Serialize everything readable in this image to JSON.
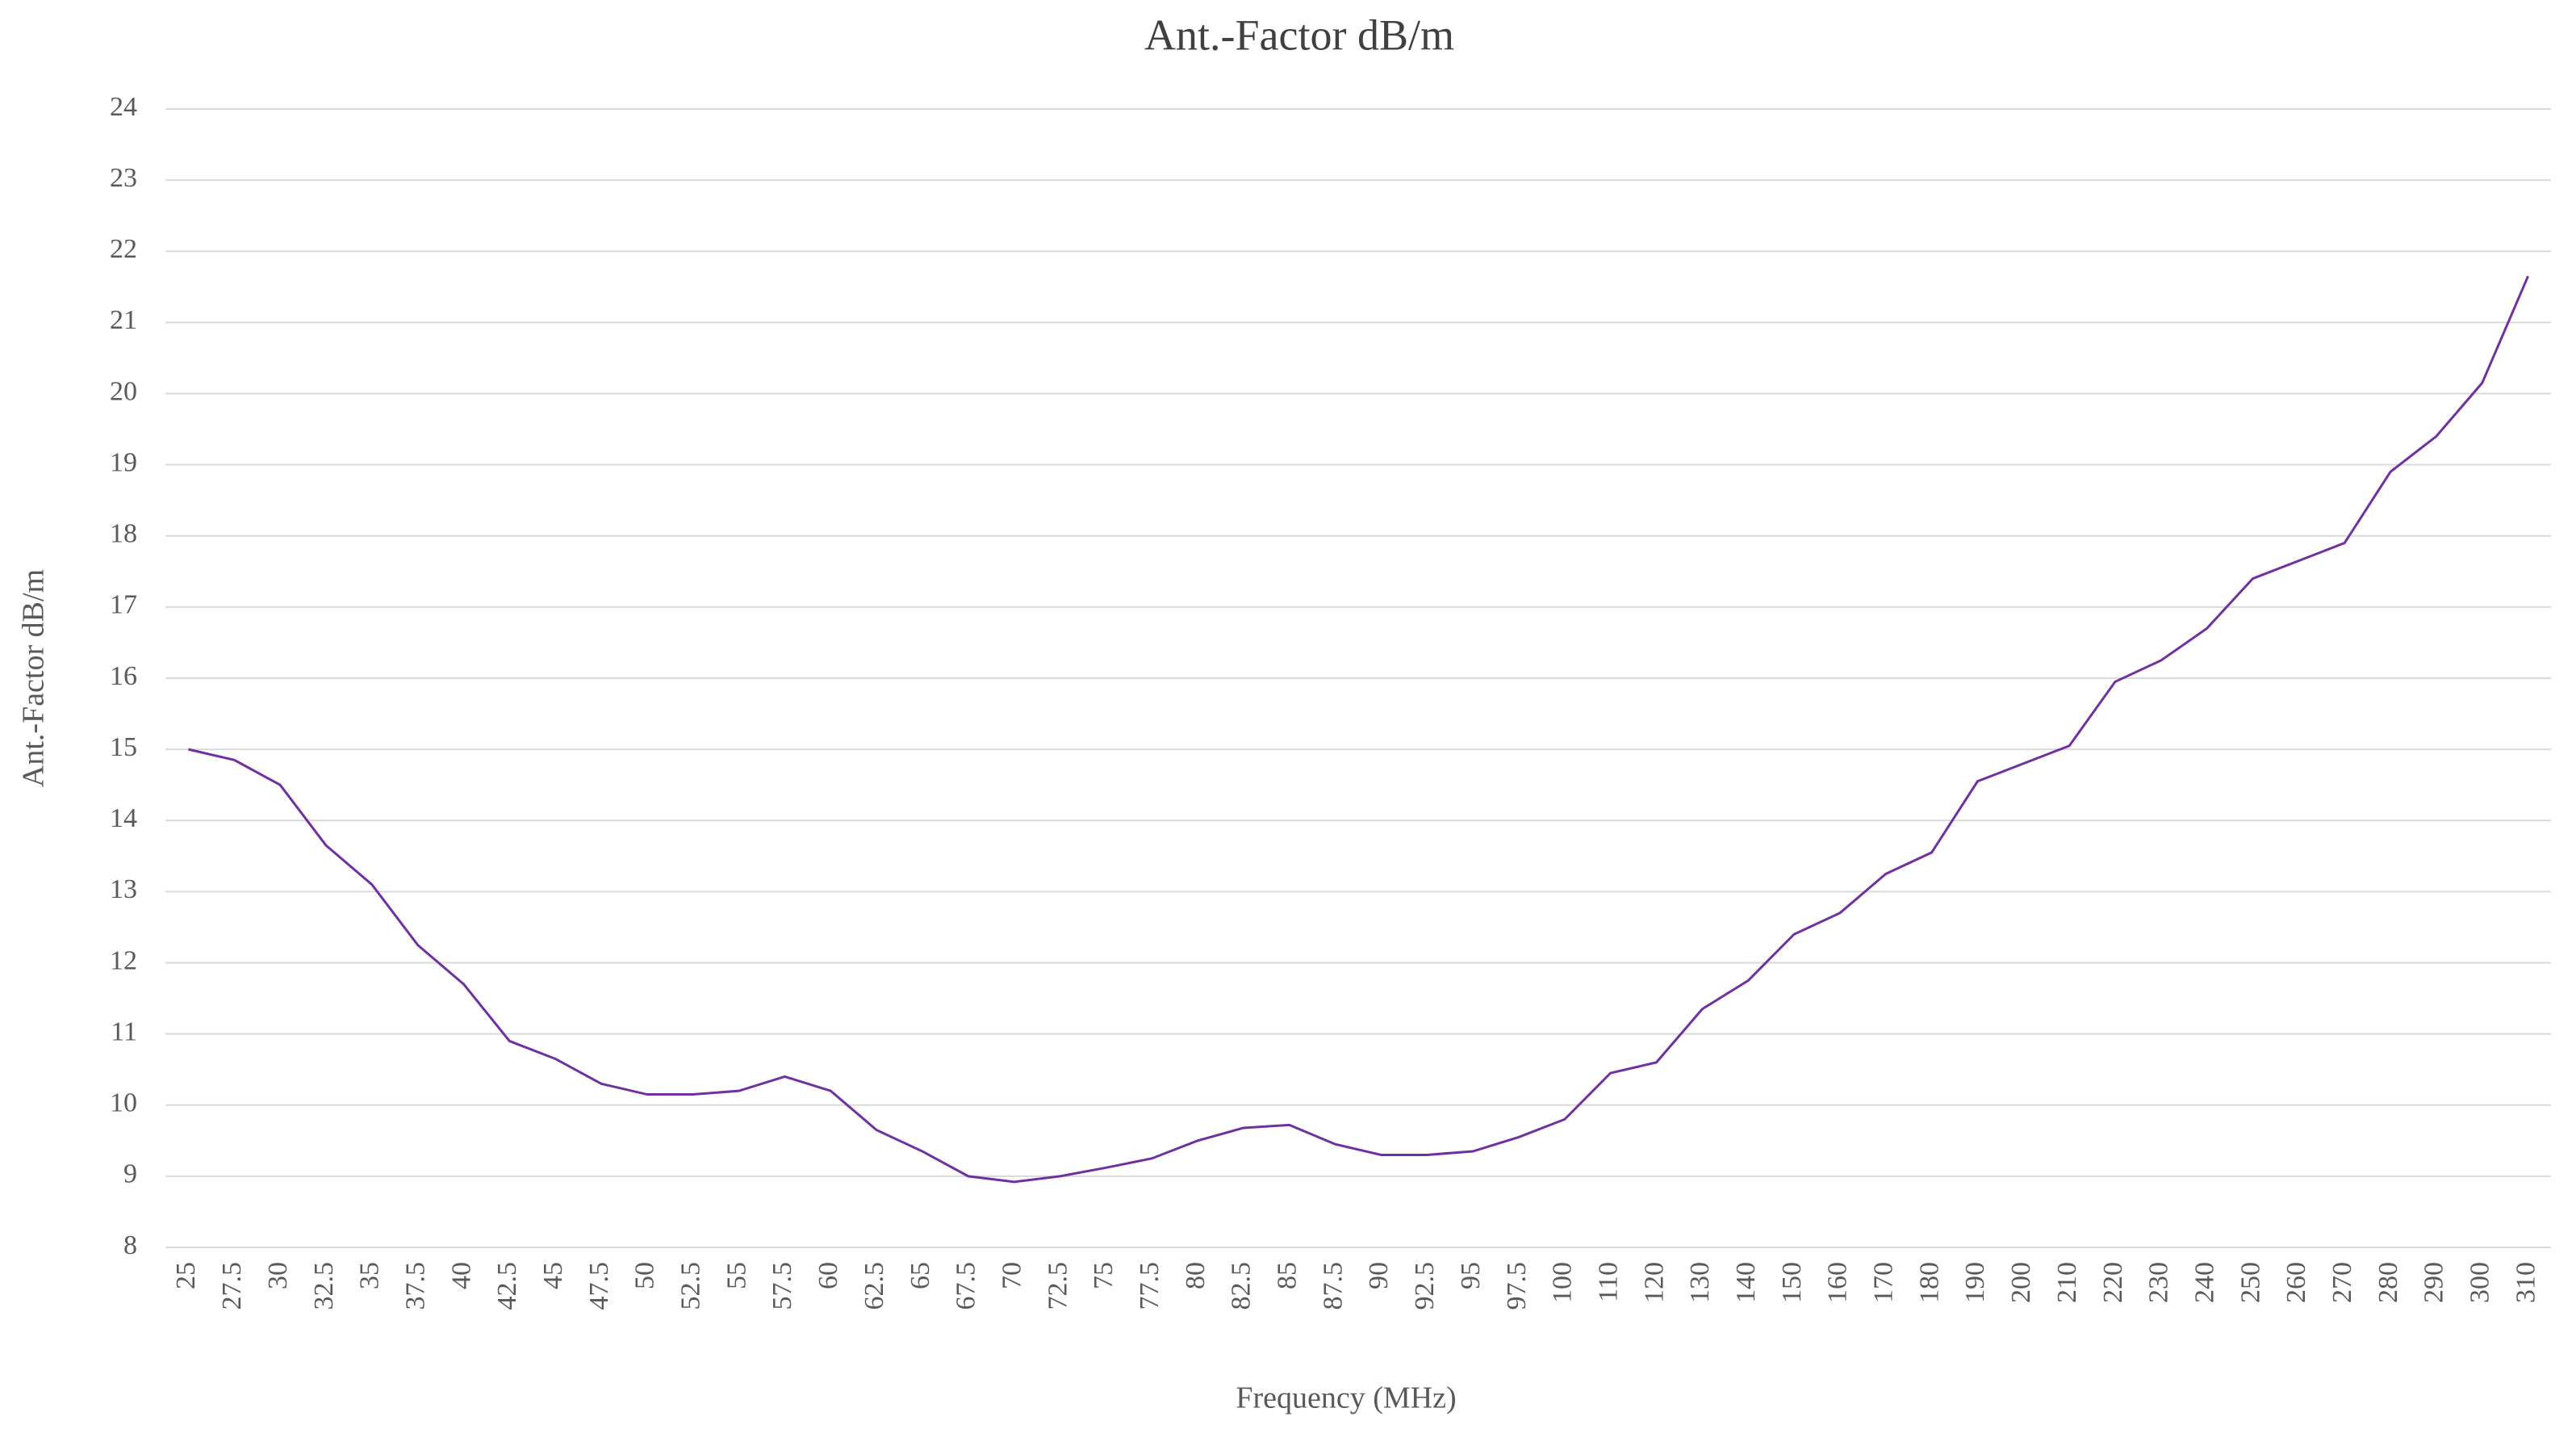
{
  "chart_data": {
    "type": "line",
    "title": "Ant.-Factor dB/m",
    "x_label": "Frequency (MHz)",
    "y_label": "Ant.-Factor dB/m",
    "categories": [
      "25",
      "27.5",
      "30",
      "32.5",
      "35",
      "37.5",
      "40",
      "42.5",
      "45",
      "47.5",
      "50",
      "52.5",
      "55",
      "57.5",
      "60",
      "62.5",
      "65",
      "67.5",
      "70",
      "72.5",
      "75",
      "77.5",
      "80",
      "82.5",
      "85",
      "87.5",
      "90",
      "92.5",
      "95",
      "97.5",
      "100",
      "110",
      "120",
      "130",
      "140",
      "150",
      "160",
      "170",
      "180",
      "190",
      "200",
      "210",
      "220",
      "230",
      "240",
      "250",
      "260",
      "270",
      "280",
      "290",
      "300",
      "310"
    ],
    "series": [
      {
        "name": "Ant.-Factor dB/m",
        "color": "#7030a0",
        "values": [
          15.0,
          14.85,
          14.5,
          13.65,
          13.1,
          12.25,
          11.7,
          10.9,
          10.65,
          10.3,
          10.15,
          10.15,
          10.2,
          10.4,
          10.2,
          9.65,
          9.35,
          9.0,
          8.92,
          9.0,
          9.12,
          9.25,
          9.5,
          9.68,
          9.72,
          9.45,
          9.3,
          9.3,
          9.35,
          9.55,
          9.8,
          10.45,
          10.6,
          11.35,
          11.75,
          12.4,
          12.7,
          13.25,
          13.55,
          14.55,
          14.8,
          15.05,
          15.95,
          16.25,
          16.7,
          17.4,
          17.65,
          17.9,
          18.9,
          19.4,
          20.15,
          21.65
        ]
      }
    ],
    "ylim": [
      8,
      24
    ],
    "yticks": [
      8,
      9,
      10,
      11,
      12,
      13,
      14,
      15,
      16,
      17,
      18,
      19,
      20,
      21,
      22,
      23,
      24
    ],
    "grid": true
  }
}
